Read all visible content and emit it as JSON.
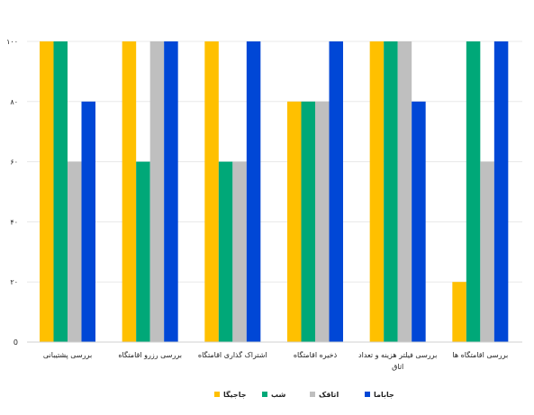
{
  "chart_data": {
    "type": "bar",
    "title": "",
    "xlabel": "",
    "ylabel": "",
    "ylim": [
      0,
      100
    ],
    "yticks": [
      "0",
      "۲۰",
      "۴۰",
      "۶۰",
      "۸۰",
      "۱۰۰"
    ],
    "yticks_values": [
      0,
      20,
      40,
      60,
      80,
      100
    ],
    "grid": true,
    "legend_position": "bottom",
    "categories": [
      [
        "بررسی پشتیبانی"
      ],
      [
        "بررسی رزرو اقامتگاه"
      ],
      [
        "اشتراک گذاری اقامتگاه"
      ],
      [
        "ذخیره اقامتگاه"
      ],
      [
        "بررسی فیلتر هزینه و تعداد",
        "اتاق"
      ],
      [
        "بررسی اقامتگاه ها"
      ]
    ],
    "series": [
      {
        "name": "جاجیگا",
        "color": "#FFC000",
        "values": [
          100,
          100,
          100,
          80,
          100,
          20
        ]
      },
      {
        "name": "شب",
        "color": "#00A878",
        "values": [
          100,
          60,
          60,
          80,
          100,
          100
        ]
      },
      {
        "name": "اتاقک",
        "color": "#BFBFBF",
        "values": [
          60,
          100,
          60,
          80,
          100,
          60
        ]
      },
      {
        "name": "جاباما",
        "color": "#0047D6",
        "values": [
          80,
          100,
          100,
          100,
          80,
          100
        ]
      }
    ]
  }
}
